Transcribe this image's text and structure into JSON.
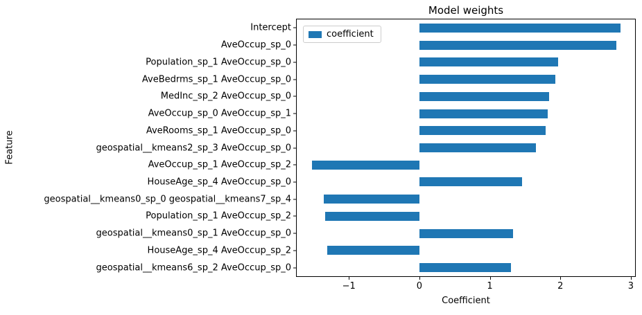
{
  "chart_data": {
    "type": "bar",
    "orientation": "horizontal",
    "title": "Model weights",
    "xlabel": "Coefficient",
    "ylabel": "Feature",
    "legend": [
      "coefficient"
    ],
    "legend_position": "upper left",
    "bar_color": "#1f77b4",
    "grid": false,
    "xlim": [
      -1.74,
      3.06
    ],
    "xticks": [
      -1,
      0,
      1,
      2,
      3
    ],
    "categories": [
      "Intercept",
      "AveOccup_sp_0",
      "Population_sp_1 AveOccup_sp_0",
      "AveBedrms_sp_1 AveOccup_sp_0",
      "MedInc_sp_2 AveOccup_sp_0",
      "AveOccup_sp_0 AveOccup_sp_1",
      "AveRooms_sp_1 AveOccup_sp_0",
      "geospatial__kmeans2_sp_3 AveOccup_sp_0",
      "AveOccup_sp_1 AveOccup_sp_2",
      "HouseAge_sp_4 AveOccup_sp_0",
      "geospatial__kmeans0_sp_0 geospatial__kmeans7_sp_4",
      "Population_sp_1 AveOccup_sp_2",
      "geospatial__kmeans0_sp_1 AveOccup_sp_0",
      "HouseAge_sp_4 AveOccup_sp_2",
      "geospatial__kmeans6_sp_2 AveOccup_sp_0"
    ],
    "values": [
      2.85,
      2.79,
      1.97,
      1.93,
      1.84,
      1.82,
      1.79,
      1.65,
      -1.52,
      1.46,
      -1.36,
      -1.34,
      1.33,
      -1.31,
      1.3
    ]
  }
}
